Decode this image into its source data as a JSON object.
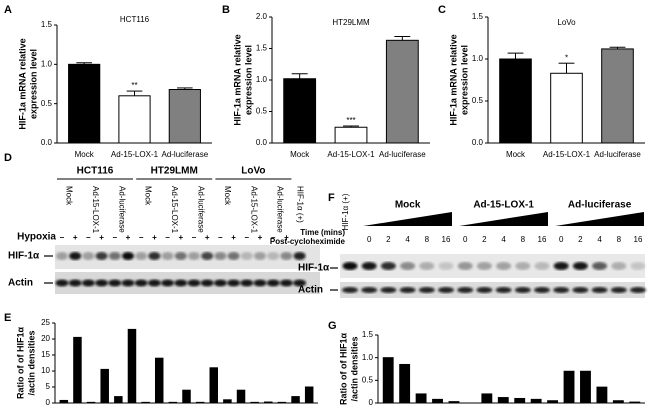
{
  "chart_data": [
    {
      "type": "bar",
      "panel": "A",
      "title": "HCT116",
      "ylabel": [
        "HIF-1a mRNA relative",
        "expression level"
      ],
      "categories": [
        "Mock",
        "Ad-15-LOX-1",
        "Ad-luciferase"
      ],
      "values": [
        1.0,
        0.6,
        0.68
      ],
      "errors": [
        0.02,
        0.06,
        0.02
      ],
      "colors": [
        "#000000",
        "#ffffff",
        "#808080"
      ],
      "ylim": [
        0,
        1.5
      ],
      "yticks": [
        {
          "value": 0,
          "label": "0.0"
        },
        {
          "value": 0.5,
          "label": "0.5"
        },
        {
          "value": 1,
          "label": "1.0"
        },
        {
          "value": 1.5,
          "label": "1.5"
        }
      ],
      "annotations": [
        {
          "text": "**",
          "category": 1
        }
      ]
    },
    {
      "type": "bar",
      "panel": "B",
      "title": "HT29LMM",
      "ylabel": [
        "HIF-1a mRNA relative",
        "expression level"
      ],
      "categories": [
        "Mock",
        "Ad-15-LOX-1",
        "Ad-luciferase"
      ],
      "values": [
        1.02,
        0.25,
        1.63
      ],
      "errors": [
        0.08,
        0.02,
        0.06
      ],
      "colors": [
        "#000000",
        "#ffffff",
        "#808080"
      ],
      "ylim": [
        0,
        2
      ],
      "yticks": [
        {
          "value": 0,
          "label": "0.0"
        },
        {
          "value": 0.5,
          "label": "0.5"
        },
        {
          "value": 1,
          "label": "1.0"
        },
        {
          "value": 1.5,
          "label": "1.5"
        },
        {
          "value": 2,
          "label": "2.0"
        }
      ],
      "annotations": [
        {
          "text": "***",
          "category": 1
        }
      ]
    },
    {
      "type": "bar",
      "panel": "C",
      "title": "LoVo",
      "ylabel": [
        "HIF-1a mRNA relative",
        "expression level"
      ],
      "categories": [
        "Mock",
        "Ad-15-LOX-1",
        "Ad-luciferase"
      ],
      "values": [
        1.0,
        0.83,
        1.12
      ],
      "errors": [
        0.07,
        0.12,
        0.02
      ],
      "colors": [
        "#000000",
        "#ffffff",
        "#808080"
      ],
      "ylim": [
        0,
        1.5
      ],
      "yticks": [
        {
          "value": 0,
          "label": "0.0"
        },
        {
          "value": 0.5,
          "label": "0.5"
        },
        {
          "value": 1,
          "label": "1.0"
        },
        {
          "value": 1.5,
          "label": "1.5"
        }
      ],
      "annotations": [
        {
          "text": "*",
          "category": 1
        }
      ]
    },
    {
      "type": "bar",
      "panel": "E",
      "ylabel": [
        "Ratio of of HIF1α",
        "/actin densities"
      ],
      "categories": [
        null,
        null,
        null,
        null,
        null,
        null,
        null,
        null,
        null,
        null,
        null,
        null,
        null,
        null,
        null,
        null,
        null,
        null,
        null
      ],
      "values": [
        0.8,
        20.5,
        0.2,
        10.5,
        2,
        23,
        0.2,
        14,
        0.2,
        4,
        0.2,
        11,
        1,
        4,
        0.2,
        0.3,
        0.2,
        2,
        5
      ],
      "color": "#000000",
      "ylim": [
        0,
        25
      ],
      "yticks": [
        0,
        5,
        10,
        15,
        20,
        25
      ]
    },
    {
      "type": "bar",
      "panel": "G",
      "ylabel": [
        "Ratio of of HIF1α",
        "/actin densities"
      ],
      "categories": [
        null,
        null,
        null,
        null,
        null,
        null,
        null,
        null,
        null,
        null,
        null,
        null,
        null,
        null,
        null,
        null
      ],
      "values": [
        1.0,
        0.85,
        0.2,
        0.08,
        0.03,
        0,
        0.2,
        0.12,
        0.1,
        0.08,
        0.05,
        0.7,
        0.7,
        0.35,
        0.05,
        0.02
      ],
      "color": "#000000",
      "ylim": [
        0,
        1.5
      ],
      "yticks": [
        0,
        {
          "value": 0.5,
          "label": "0.5"
        },
        {
          "value": 1,
          "label": "1.0"
        },
        {
          "value": 1.5,
          "label": "1.5"
        }
      ]
    }
  ],
  "blot_d": {
    "panel": "D",
    "groups": [
      "HCT116",
      "HT29LMM",
      "LoVo"
    ],
    "lanes": [
      "Mock",
      "Ad-15-LOX-1",
      "Ad-luciferase",
      "Mock",
      "Ad-15-LOX-1",
      "Ad-luciferase",
      "Mock",
      "Ad-15-LOX-1",
      "Ad-luciferase"
    ],
    "control": "HIF-1α (+)",
    "hypoxia_label": "Hypoxia",
    "hypoxia": [
      "–",
      "+",
      "–",
      "+",
      "–",
      "+",
      "–",
      "+",
      "–",
      "+",
      "–",
      "+",
      "–",
      "+",
      "–",
      "+",
      "–",
      "+"
    ],
    "rows": [
      "HIF-1α",
      "Actin"
    ]
  },
  "blot_f": {
    "panel": "F",
    "control": "HIF-1α (+)",
    "groups": [
      "Mock",
      "Ad-15-LOX-1",
      "Ad-luciferase"
    ],
    "time_label": [
      "Time (mins)",
      "Post-cycloheximide"
    ],
    "times": [
      0,
      2,
      4,
      8,
      16,
      0,
      2,
      4,
      8,
      16,
      0,
      2,
      4,
      8,
      16
    ],
    "rows": [
      "HIF-1α",
      "Actin"
    ]
  }
}
